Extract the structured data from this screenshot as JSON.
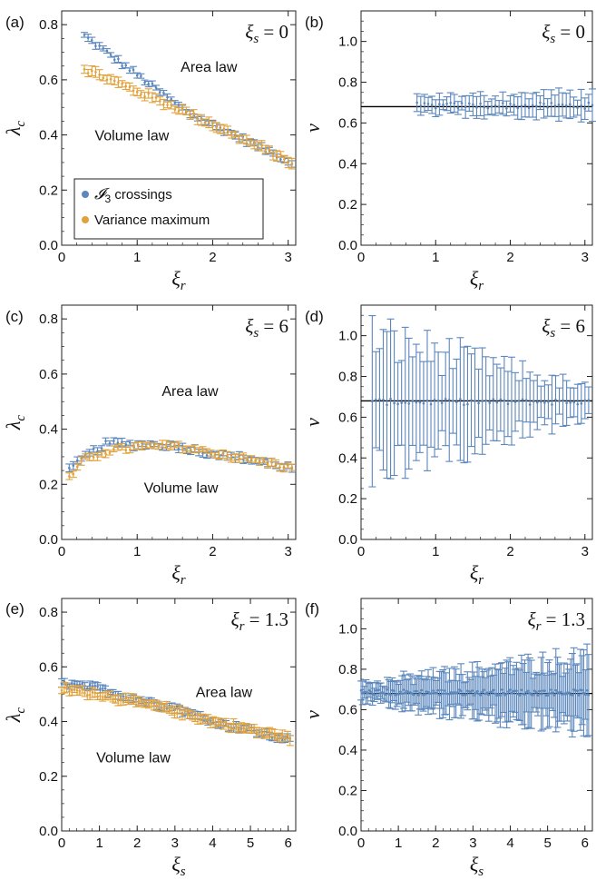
{
  "colors": {
    "blue": "#5b87bd",
    "orange": "#e2a23b",
    "reference_line": "#000000"
  },
  "chart_data": [
    {
      "id": "a",
      "panel_label": "(a)",
      "type": "scatter",
      "xlabel_sym": "ξ",
      "xlabel_sub": "r",
      "ylabel_sym": "λ",
      "ylabel_sub": "c",
      "xlim": [
        0,
        3.1
      ],
      "ylim": [
        0,
        0.85
      ],
      "xticks": [
        0,
        1,
        2,
        3
      ],
      "yticks": [
        0.0,
        0.2,
        0.4,
        0.6,
        0.8
      ],
      "annotation": {
        "sym": "ξ",
        "sub": "s",
        "rel": " = 0"
      },
      "regions": [
        {
          "label": "Area law",
          "x": 1.95,
          "y": 0.63
        },
        {
          "label": "Volume law",
          "x": 0.93,
          "y": 0.38
        }
      ],
      "legend": {
        "position": "bottom-left",
        "entries": [
          {
            "series": "I3",
            "sym": "𝓘",
            "sub": "3",
            "rest": " crossings"
          },
          {
            "series": "var",
            "sym": "",
            "sub": "",
            "rest": "Variance maximum"
          }
        ]
      },
      "series": [
        {
          "name": "I3 crossings",
          "color": "blue",
          "x0": 0.3,
          "x1": 3.05,
          "n": 56,
          "y_start": 0.76,
          "y_mid": 0.48,
          "y_end": 0.3,
          "err": 0.01
        },
        {
          "name": "Variance maximum",
          "color": "orange",
          "x0": 0.3,
          "x1": 3.05,
          "n": 56,
          "y_start": 0.64,
          "y_mid": 0.48,
          "y_end": 0.3,
          "err": 0.015
        }
      ]
    },
    {
      "id": "b",
      "panel_label": "(b)",
      "type": "scatter",
      "xlabel_sym": "ξ",
      "xlabel_sub": "r",
      "ylabel_sym": "ν",
      "ylabel_sub": "",
      "xlim": [
        0,
        3.1
      ],
      "ylim": [
        0,
        1.15
      ],
      "xticks": [
        0,
        1,
        2,
        3
      ],
      "yticks": [
        0.0,
        0.2,
        0.4,
        0.6,
        0.8,
        1.0
      ],
      "annotation": {
        "sym": "ξ",
        "sub": "s",
        "rel": " = 0"
      },
      "reference_y": 0.68,
      "series": [
        {
          "name": "nu",
          "color": "blue",
          "x0": 0.75,
          "x1": 3.1,
          "n": 48,
          "y_mean": 0.685,
          "err_start": 0.035,
          "err_end": 0.06
        }
      ]
    },
    {
      "id": "c",
      "panel_label": "(c)",
      "type": "scatter",
      "xlabel_sym": "ξ",
      "xlabel_sub": "r",
      "ylabel_sym": "λ",
      "ylabel_sub": "c",
      "xlim": [
        0,
        3.1
      ],
      "ylim": [
        0,
        0.85
      ],
      "xticks": [
        0,
        1,
        2,
        3
      ],
      "yticks": [
        0.0,
        0.2,
        0.4,
        0.6,
        0.8
      ],
      "annotation": {
        "sym": "ξ",
        "sub": "s",
        "rel": " = 6"
      },
      "regions": [
        {
          "label": "Area law",
          "x": 1.7,
          "y": 0.52
        },
        {
          "label": "Volume law",
          "x": 1.58,
          "y": 0.17
        }
      ],
      "series": [
        {
          "name": "I3 crossings",
          "color": "blue",
          "x0": 0.1,
          "x1": 3.05,
          "n": 56,
          "points": [
            [
              0.1,
              0.25
            ],
            [
              0.3,
              0.3
            ],
            [
              0.6,
              0.35
            ],
            [
              1.0,
              0.345
            ],
            [
              1.5,
              0.34
            ],
            [
              2.0,
              0.31
            ],
            [
              2.5,
              0.29
            ],
            [
              3.05,
              0.26
            ]
          ],
          "err": 0.012
        },
        {
          "name": "Variance maximum",
          "color": "orange",
          "x0": 0.1,
          "x1": 3.05,
          "n": 56,
          "points": [
            [
              0.1,
              0.22
            ],
            [
              0.3,
              0.29
            ],
            [
              0.6,
              0.32
            ],
            [
              1.0,
              0.335
            ],
            [
              1.5,
              0.34
            ],
            [
              2.0,
              0.315
            ],
            [
              2.5,
              0.29
            ],
            [
              3.05,
              0.26
            ]
          ],
          "err": 0.012
        }
      ]
    },
    {
      "id": "d",
      "panel_label": "(d)",
      "type": "scatter",
      "xlabel_sym": "ξ",
      "xlabel_sub": "r",
      "ylabel_sym": "ν",
      "ylabel_sub": "",
      "xlim": [
        0,
        3.1
      ],
      "ylim": [
        0,
        1.15
      ],
      "xticks": [
        0,
        1,
        2,
        3
      ],
      "yticks": [
        0.0,
        0.2,
        0.4,
        0.6,
        0.8,
        1.0
      ],
      "annotation": {
        "sym": "ξ",
        "sub": "s",
        "rel": " = 6"
      },
      "reference_y": 0.68,
      "series": [
        {
          "name": "nu",
          "color": "blue",
          "x0": 0.15,
          "x1": 3.05,
          "n": 60,
          "y_mean": 0.675,
          "err_start": 0.3,
          "err_end": 0.06
        }
      ]
    },
    {
      "id": "e",
      "panel_label": "(e)",
      "type": "scatter",
      "xlabel_sym": "ξ",
      "xlabel_sub": "s",
      "ylabel_sym": "λ",
      "ylabel_sub": "c",
      "xlim": [
        0,
        6.2
      ],
      "ylim": [
        0,
        0.85
      ],
      "xticks": [
        0,
        1,
        2,
        3,
        4,
        5,
        6
      ],
      "yticks": [
        0.0,
        0.2,
        0.4,
        0.6,
        0.8
      ],
      "annotation": {
        "sym": "ξ",
        "sub": "r",
        "rel": " = 1.3"
      },
      "regions": [
        {
          "label": "Area law",
          "x": 4.3,
          "y": 0.49
        },
        {
          "label": "Volume law",
          "x": 1.9,
          "y": 0.25
        }
      ],
      "series": [
        {
          "name": "I3 crossings",
          "color": "blue",
          "x0": 0.0,
          "x1": 6.05,
          "n": 90,
          "points": [
            [
              0.0,
              0.54
            ],
            [
              1.0,
              0.52
            ],
            [
              2.0,
              0.48
            ],
            [
              3.0,
              0.45
            ],
            [
              4.0,
              0.4
            ],
            [
              5.0,
              0.37
            ],
            [
              6.05,
              0.33
            ]
          ],
          "err": 0.012
        },
        {
          "name": "Variance maximum",
          "color": "orange",
          "x0": 0.0,
          "x1": 6.05,
          "n": 90,
          "points": [
            [
              0.0,
              0.52
            ],
            [
              1.0,
              0.5
            ],
            [
              2.0,
              0.47
            ],
            [
              3.0,
              0.44
            ],
            [
              4.0,
              0.4
            ],
            [
              5.0,
              0.37
            ],
            [
              6.05,
              0.34
            ]
          ],
          "err": 0.015
        }
      ]
    },
    {
      "id": "f",
      "panel_label": "(f)",
      "type": "scatter",
      "xlabel_sym": "ξ",
      "xlabel_sub": "s",
      "ylabel_sym": "ν",
      "ylabel_sub": "",
      "xlim": [
        0,
        6.2
      ],
      "ylim": [
        0,
        1.15
      ],
      "xticks": [
        0,
        1,
        2,
        3,
        4,
        5,
        6
      ],
      "yticks": [
        0.0,
        0.2,
        0.4,
        0.6,
        0.8,
        1.0
      ],
      "annotation": {
        "sym": "ξ",
        "sub": "r",
        "rel": " = 1.3"
      },
      "reference_y": 0.68,
      "series": [
        {
          "name": "nu",
          "color": "blue",
          "x0": 0.0,
          "x1": 6.1,
          "n": 140,
          "y_mean": 0.685,
          "err_start": 0.04,
          "err_end": 0.16
        }
      ]
    }
  ]
}
